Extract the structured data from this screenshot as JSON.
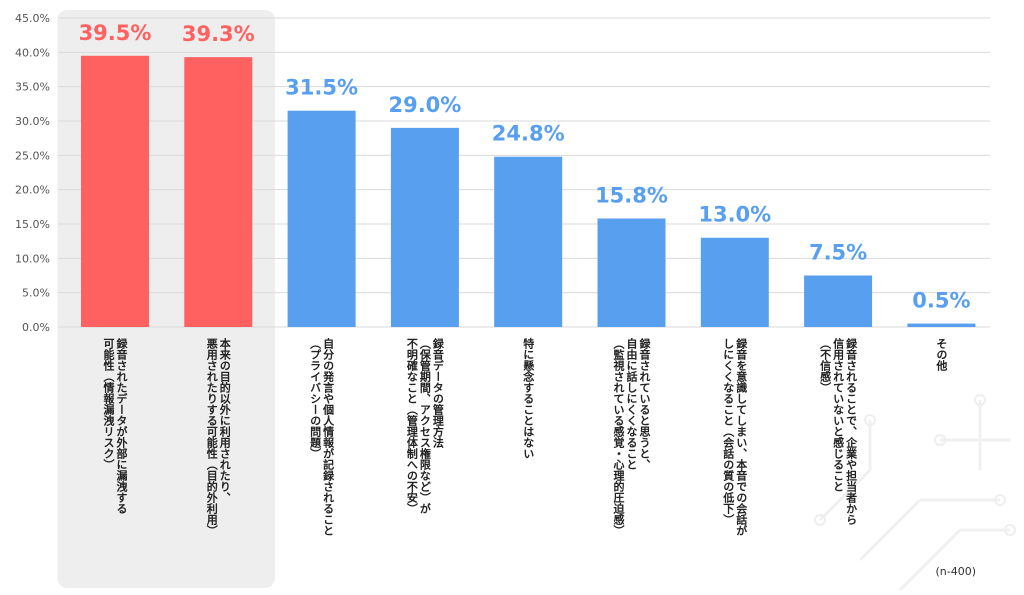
{
  "chart_data": {
    "type": "bar",
    "note": "(n-400)",
    "ylim": [
      0,
      45
    ],
    "yticks": [
      "0.0%",
      "5.0%",
      "10.0%",
      "15.0%",
      "20.0%",
      "25.0%",
      "30.0%",
      "35.0%",
      "40.0%",
      "45.0%"
    ],
    "grid": true,
    "highlight_color": "#ff6060",
    "bar_color": "#589ff0",
    "highlight_band_color": "#eeeeee",
    "highlighted_count": 2,
    "categories": [
      "録音されたデータが外部に漏洩する\n可能性（情報漏洩リスク）",
      "本来の目的以外に利用されたり、\n悪用されたりする可能性（目的外利用）",
      "自分の発言や個人情報が記録されること\n（プライバシーの問題）",
      "録音データの管理方法\n（保管期間、アクセス権限など）が\n不明確なこと（管理体制への不安）",
      "特に懸念することはない",
      "録音されていると思うと、\n自由に話しにくくなること\n（監視されている感覚・心理的圧迫感）",
      "録音を意識してしまい、本音での会話が\nしにくくなること（会話の質の低下）",
      "録音されることで、企業や担当者から\n信用されていないと感じること\n（不信感）",
      "その他"
    ],
    "values": [
      39.5,
      39.3,
      31.5,
      29.0,
      24.8,
      15.8,
      13.0,
      7.5,
      0.5
    ],
    "data_labels": [
      "39.5%",
      "39.3%",
      "31.5%",
      "29.0%",
      "24.8%",
      "15.8%",
      "13.0%",
      "7.5%",
      "0.5%"
    ]
  }
}
